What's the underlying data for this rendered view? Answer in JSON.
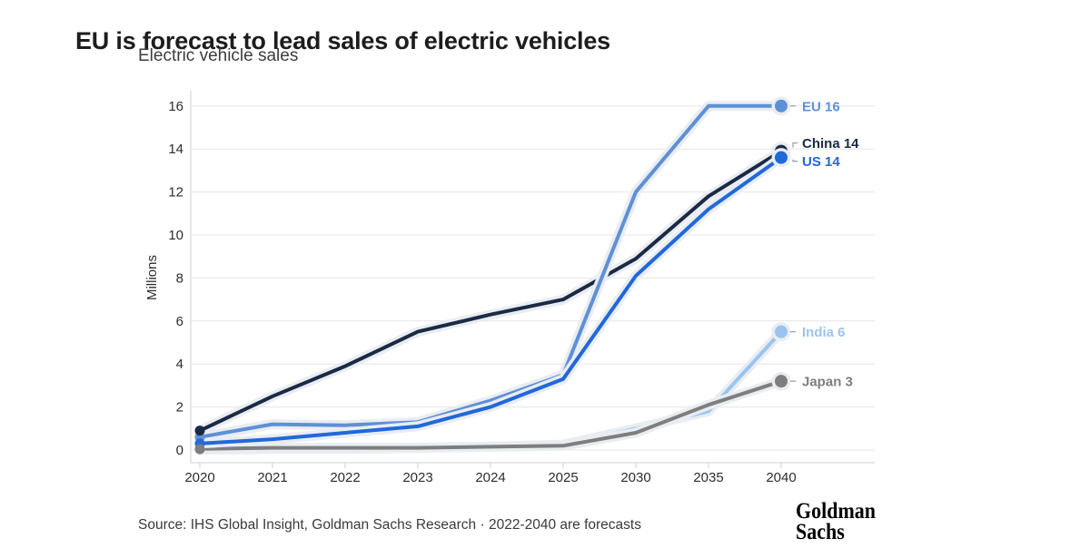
{
  "header": {
    "title": "EU is forecast to lead sales of electric vehicles",
    "subtitle": "Electric vehicle sales"
  },
  "chart_data": {
    "type": "line",
    "title": "Electric vehicle sales",
    "ylabel": "Millions",
    "xlabel": "",
    "ylim": [
      0,
      16
    ],
    "grid": true,
    "legend_position": "end-of-line-labels-right",
    "x_categories": [
      "2020",
      "2021",
      "2022",
      "2023",
      "2024",
      "2025",
      "2030",
      "2035",
      "2040"
    ],
    "y_ticks": [
      "0",
      "2",
      "4",
      "6",
      "8",
      "10",
      "12",
      "14",
      "16"
    ],
    "series": [
      {
        "name": "China",
        "color": "#1b2a44",
        "end_label": "China 14",
        "values": [
          0.9,
          2.5,
          3.9,
          5.5,
          6.3,
          7.0,
          8.9,
          11.8,
          13.9
        ]
      },
      {
        "name": "India",
        "color": "#9ac4ef",
        "end_label": "India 6",
        "values": [
          0.02,
          0.05,
          0.05,
          0.1,
          0.15,
          0.25,
          1.0,
          1.8,
          5.5
        ]
      },
      {
        "name": "Japan",
        "color": "#7e7e7e",
        "end_label": "Japan 3",
        "values": [
          0.05,
          0.1,
          0.1,
          0.1,
          0.15,
          0.2,
          0.8,
          2.1,
          3.2
        ]
      },
      {
        "name": "EU",
        "color": "#5e90d6",
        "end_label": "EU 16",
        "values": [
          0.6,
          1.2,
          1.15,
          1.3,
          2.3,
          3.5,
          12.0,
          16.0,
          16.0
        ]
      },
      {
        "name": "US",
        "color": "#2168d9",
        "end_label": "US 14",
        "values": [
          0.3,
          0.5,
          0.8,
          1.1,
          2.0,
          3.3,
          8.1,
          11.2,
          13.6
        ]
      }
    ]
  },
  "footer": {
    "source": "Source: IHS Global Insight, Goldman Sachs Research · 2022-2040 are forecasts",
    "logo_line1": "Goldman",
    "logo_line2": "Sachs"
  }
}
